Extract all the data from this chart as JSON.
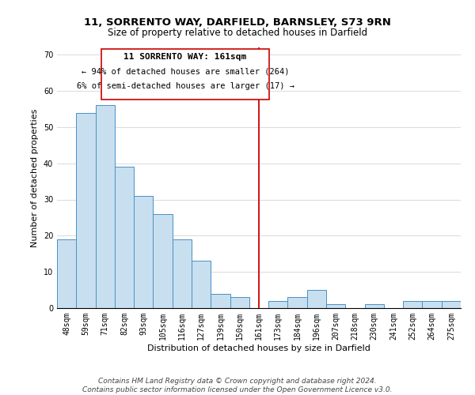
{
  "title": "11, SORRENTO WAY, DARFIELD, BARNSLEY, S73 9RN",
  "subtitle": "Size of property relative to detached houses in Darfield",
  "xlabel": "Distribution of detached houses by size in Darfield",
  "ylabel": "Number of detached properties",
  "bin_labels": [
    "48sqm",
    "59sqm",
    "71sqm",
    "82sqm",
    "93sqm",
    "105sqm",
    "116sqm",
    "127sqm",
    "139sqm",
    "150sqm",
    "161sqm",
    "173sqm",
    "184sqm",
    "196sqm",
    "207sqm",
    "218sqm",
    "230sqm",
    "241sqm",
    "252sqm",
    "264sqm",
    "275sqm"
  ],
  "bar_heights": [
    19,
    54,
    56,
    39,
    31,
    26,
    19,
    13,
    4,
    3,
    0,
    2,
    3,
    5,
    1,
    0,
    1,
    0,
    2,
    2,
    2
  ],
  "bar_color": "#c8dff0",
  "bar_edge_color": "#4a90c4",
  "highlight_x_label": "161sqm",
  "highlight_line_color": "#cc0000",
  "annotation_title": "11 SORRENTO WAY: 161sqm",
  "annotation_line1": "← 94% of detached houses are smaller (264)",
  "annotation_line2": "6% of semi-detached houses are larger (17) →",
  "annotation_box_edge": "#cc0000",
  "ylim": [
    0,
    72
  ],
  "yticks": [
    0,
    10,
    20,
    30,
    40,
    50,
    60,
    70
  ],
  "footer1": "Contains HM Land Registry data © Crown copyright and database right 2024.",
  "footer2": "Contains public sector information licensed under the Open Government Licence v3.0.",
  "title_fontsize": 9.5,
  "subtitle_fontsize": 8.5,
  "tick_fontsize": 7,
  "ylabel_fontsize": 8,
  "xlabel_fontsize": 8,
  "footer_fontsize": 6.5
}
